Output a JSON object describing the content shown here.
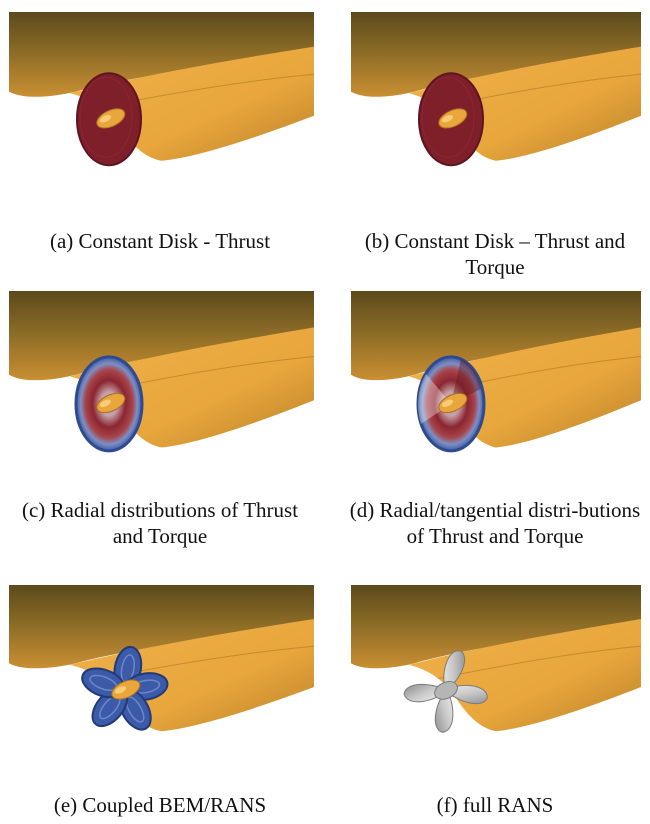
{
  "figure": {
    "panels": [
      {
        "id": "a",
        "caption": "(a) Constant Disk - Thrust",
        "model": "disk-uniform"
      },
      {
        "id": "b",
        "caption": "(b) Constant Disk – Thrust and Torque",
        "model": "disk-uniform"
      },
      {
        "id": "c",
        "caption": "(c) Radial distributions of Thrust and Torque",
        "model": "disk-radial"
      },
      {
        "id": "d",
        "caption": "(d) Radial/tangential distri-butions of Thrust and Torque",
        "model": "disk-radial-tangential"
      },
      {
        "id": "e",
        "caption": "(e) Coupled BEM/RANS",
        "model": "blade-cells"
      },
      {
        "id": "f",
        "caption": "(f) full RANS",
        "model": "propeller-geometry"
      }
    ],
    "colors": {
      "hull_dark": "#5c4a1c",
      "hull_light": "#e8a63c",
      "disk_red": "#7e1f2a",
      "disk_blue": "#3b5ba8",
      "propeller_gray": "#c9c9c9"
    }
  }
}
